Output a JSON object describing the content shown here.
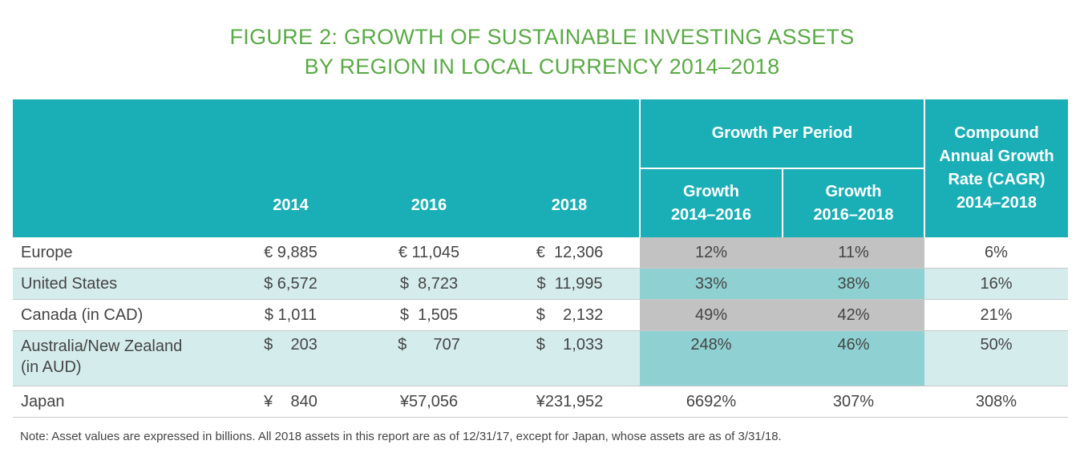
{
  "title": {
    "line1": "FIGURE 2: GROWTH OF SUSTAINABLE INVESTING ASSETS",
    "line2": "BY REGION IN LOCAL CURRENCY 2014–2018"
  },
  "table": {
    "headers": {
      "y2014": "2014",
      "y2016": "2016",
      "y2018": "2018",
      "growth_group": "Growth Per Period",
      "growth_a": "Growth 2014–2016",
      "growth_b": "Growth 2016–2018",
      "cagr": "Compound Annual Growth Rate (CAGR) 2014–2018"
    },
    "rows": [
      {
        "region": "Europe",
        "v2014": "€ 9,885",
        "v2016": "€ 11,045",
        "v2018": "€  12,306",
        "g1": "12%",
        "g2": "11%",
        "cagr": "6%"
      },
      {
        "region": "United States",
        "v2014": "$ 6,572",
        "v2016": "$  8,723",
        "v2018": "$  11,995",
        "g1": "33%",
        "g2": "38%",
        "cagr": "16%"
      },
      {
        "region": "Canada (in CAD)",
        "v2014": "$ 1,011",
        "v2016": "$  1,505",
        "v2018": "$    2,132",
        "g1": "49%",
        "g2": "42%",
        "cagr": "21%"
      },
      {
        "region_line1": "Australia/New Zealand",
        "region_line2": "(in AUD)",
        "v2014": "$    203",
        "v2016": "$      707",
        "v2018": "$    1,033",
        "g1": "248%",
        "g2": "46%",
        "cagr": "50%"
      },
      {
        "region": "Japan",
        "v2014": "¥    840",
        "v2016": "¥57,056",
        "v2018": "¥231,952",
        "g1": "6692%",
        "g2": "307%",
        "cagr": "308%"
      }
    ]
  },
  "note": "Note: Asset values are expressed in billions. All 2018 assets in this report are as of 12/31/17, except for Japan, whose assets are as of 3/31/18.",
  "colors": {
    "title": "#5aaa46",
    "header": "#1aafb6",
    "tint_row": "#d5ecec",
    "grey_cell": "#c2c2c2",
    "teal_cell": "#8fd1d2"
  }
}
